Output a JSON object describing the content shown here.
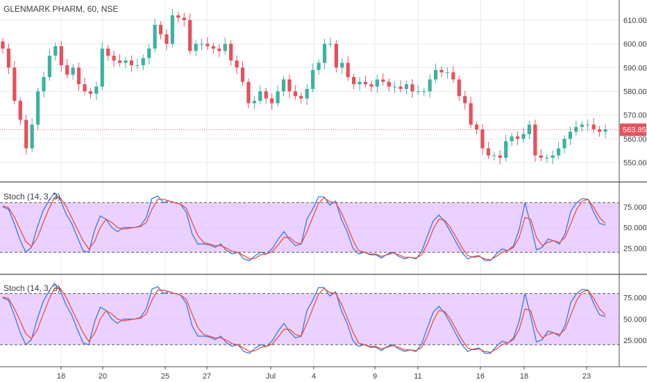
{
  "header": {
    "symbol_title": "GLENMARK PHARM, 60, NSE"
  },
  "price_tag": "563.85",
  "colors": {
    "up": "#3bb3a0",
    "down": "#e8505b",
    "k_line": "#3a78d8",
    "d_line": "#ee4e3e",
    "band_fill": "#e7c9ff",
    "grid": "#e3e9f0",
    "axis_text": "#3c3c3c",
    "price_line": "#e8505b"
  },
  "chart_data": [
    {
      "type": "candlestick",
      "title": "GLENMARK PHARM, 60, NSE",
      "y_ticks": [
        "610.00",
        "600.00",
        "590.00",
        "580.00",
        "570.00",
        "560.00",
        "550.00"
      ],
      "ylim": [
        543,
        617
      ],
      "current_price": 563.85,
      "x_tick_labels": [
        "18",
        "20",
        "25",
        "27",
        "Jul",
        "4",
        "9",
        "11",
        "16",
        "18",
        "23"
      ],
      "closes": [
        598,
        590,
        576,
        568,
        556,
        566,
        580,
        586,
        595,
        599,
        591,
        587,
        590,
        583,
        580,
        579,
        582,
        598,
        595,
        593,
        592,
        593,
        591,
        591,
        594,
        598,
        608,
        604,
        600,
        612,
        611,
        610,
        597,
        600,
        600,
        599,
        598,
        597,
        600,
        593,
        590,
        584,
        575,
        576,
        580,
        577,
        575,
        580,
        585,
        580,
        578,
        577,
        581,
        589,
        592,
        600,
        600,
        590,
        592,
        586,
        583,
        584,
        583,
        582,
        585,
        584,
        582,
        582,
        581,
        583,
        580,
        580,
        580,
        585,
        589,
        588,
        588,
        585,
        578,
        575,
        566,
        564,
        556,
        553,
        553,
        552,
        559,
        561,
        560,
        562,
        566,
        553,
        552,
        552,
        553,
        556,
        560,
        563,
        565,
        566,
        566,
        564,
        563,
        564
      ]
    },
    {
      "type": "line",
      "title": "Stoch (14, 3, 3)",
      "y_ticks": [
        "75.0000",
        "50.0000",
        "25.0000"
      ],
      "bands": [
        80,
        20
      ],
      "ylim": [
        -5,
        100
      ],
      "series": [
        {
          "values": [
            75,
            72,
            55,
            35,
            20,
            26,
            50,
            70,
            82,
            92,
            84,
            67,
            55,
            38,
            22,
            20,
            47,
            64,
            60,
            50,
            45,
            50,
            50,
            50,
            52,
            62,
            85,
            88,
            80,
            82,
            80,
            78,
            68,
            42,
            30,
            30,
            29,
            26,
            30,
            22,
            18,
            20,
            12,
            10,
            16,
            20,
            18,
            25,
            36,
            45,
            35,
            28,
            30,
            60,
            72,
            87,
            87,
            77,
            82,
            60,
            45,
            25,
            18,
            20,
            17,
            17,
            13,
            18,
            20,
            15,
            12,
            14,
            12,
            21,
            40,
            58,
            65,
            57,
            45,
            32,
            20,
            12,
            15,
            16,
            10,
            10,
            18,
            24,
            22,
            28,
            48,
            80,
            53,
            23,
            26,
            36,
            34,
            30,
            43,
            70,
            80,
            85,
            84,
            68,
            55,
            53
          ]
        },
        {
          "values": [
            76,
            74,
            63,
            48,
            33,
            27,
            37,
            55,
            72,
            86,
            86,
            76,
            62,
            48,
            34,
            24,
            33,
            50,
            60,
            56,
            50,
            48,
            49,
            50,
            51,
            56,
            72,
            84,
            84,
            82,
            80,
            78,
            73,
            56,
            40,
            32,
            30,
            28,
            28,
            25,
            21,
            20,
            16,
            12,
            13,
            17,
            18,
            21,
            29,
            38,
            38,
            32,
            30,
            45,
            62,
            79,
            86,
            81,
            80,
            68,
            52,
            35,
            22,
            20,
            18,
            18,
            15,
            17,
            19,
            17,
            14,
            14,
            13,
            17,
            30,
            48,
            60,
            59,
            50,
            38,
            26,
            16,
            14,
            15,
            12,
            11,
            15,
            20,
            22,
            26,
            38,
            62,
            60,
            38,
            28,
            32,
            34,
            32,
            38,
            55,
            72,
            82,
            84,
            74,
            62,
            55
          ]
        }
      ]
    },
    {
      "type": "line",
      "title": "Stoch (14, 3, 3)",
      "y_ticks": [
        "75.0000",
        "50.0000",
        "25.0000"
      ],
      "bands": [
        80,
        20
      ],
      "ylim": [
        -5,
        100
      ],
      "series": [
        {
          "values": [
            75,
            72,
            55,
            35,
            20,
            26,
            50,
            70,
            82,
            92,
            84,
            67,
            55,
            38,
            22,
            20,
            47,
            64,
            60,
            50,
            45,
            50,
            50,
            50,
            52,
            62,
            85,
            88,
            80,
            82,
            80,
            78,
            68,
            42,
            30,
            30,
            29,
            26,
            30,
            22,
            18,
            20,
            12,
            10,
            16,
            20,
            18,
            25,
            36,
            45,
            35,
            28,
            30,
            60,
            72,
            87,
            87,
            77,
            82,
            60,
            45,
            25,
            18,
            20,
            17,
            17,
            13,
            18,
            20,
            15,
            12,
            14,
            12,
            21,
            40,
            58,
            65,
            57,
            45,
            32,
            20,
            12,
            15,
            16,
            10,
            10,
            18,
            24,
            22,
            28,
            48,
            80,
            53,
            23,
            26,
            36,
            34,
            30,
            43,
            70,
            80,
            85,
            84,
            68,
            55,
            53
          ]
        },
        {
          "values": [
            76,
            74,
            63,
            48,
            33,
            27,
            37,
            55,
            72,
            86,
            86,
            76,
            62,
            48,
            34,
            24,
            33,
            50,
            60,
            56,
            50,
            48,
            49,
            50,
            51,
            56,
            72,
            84,
            84,
            82,
            80,
            78,
            73,
            56,
            40,
            32,
            30,
            28,
            28,
            25,
            21,
            20,
            16,
            12,
            13,
            17,
            18,
            21,
            29,
            38,
            38,
            32,
            30,
            45,
            62,
            79,
            86,
            81,
            80,
            68,
            52,
            35,
            22,
            20,
            18,
            18,
            15,
            17,
            19,
            17,
            14,
            14,
            13,
            17,
            30,
            48,
            60,
            59,
            50,
            38,
            26,
            16,
            14,
            15,
            12,
            11,
            15,
            20,
            22,
            26,
            38,
            62,
            60,
            38,
            28,
            32,
            34,
            32,
            38,
            55,
            72,
            82,
            84,
            74,
            62,
            55
          ]
        }
      ]
    }
  ]
}
